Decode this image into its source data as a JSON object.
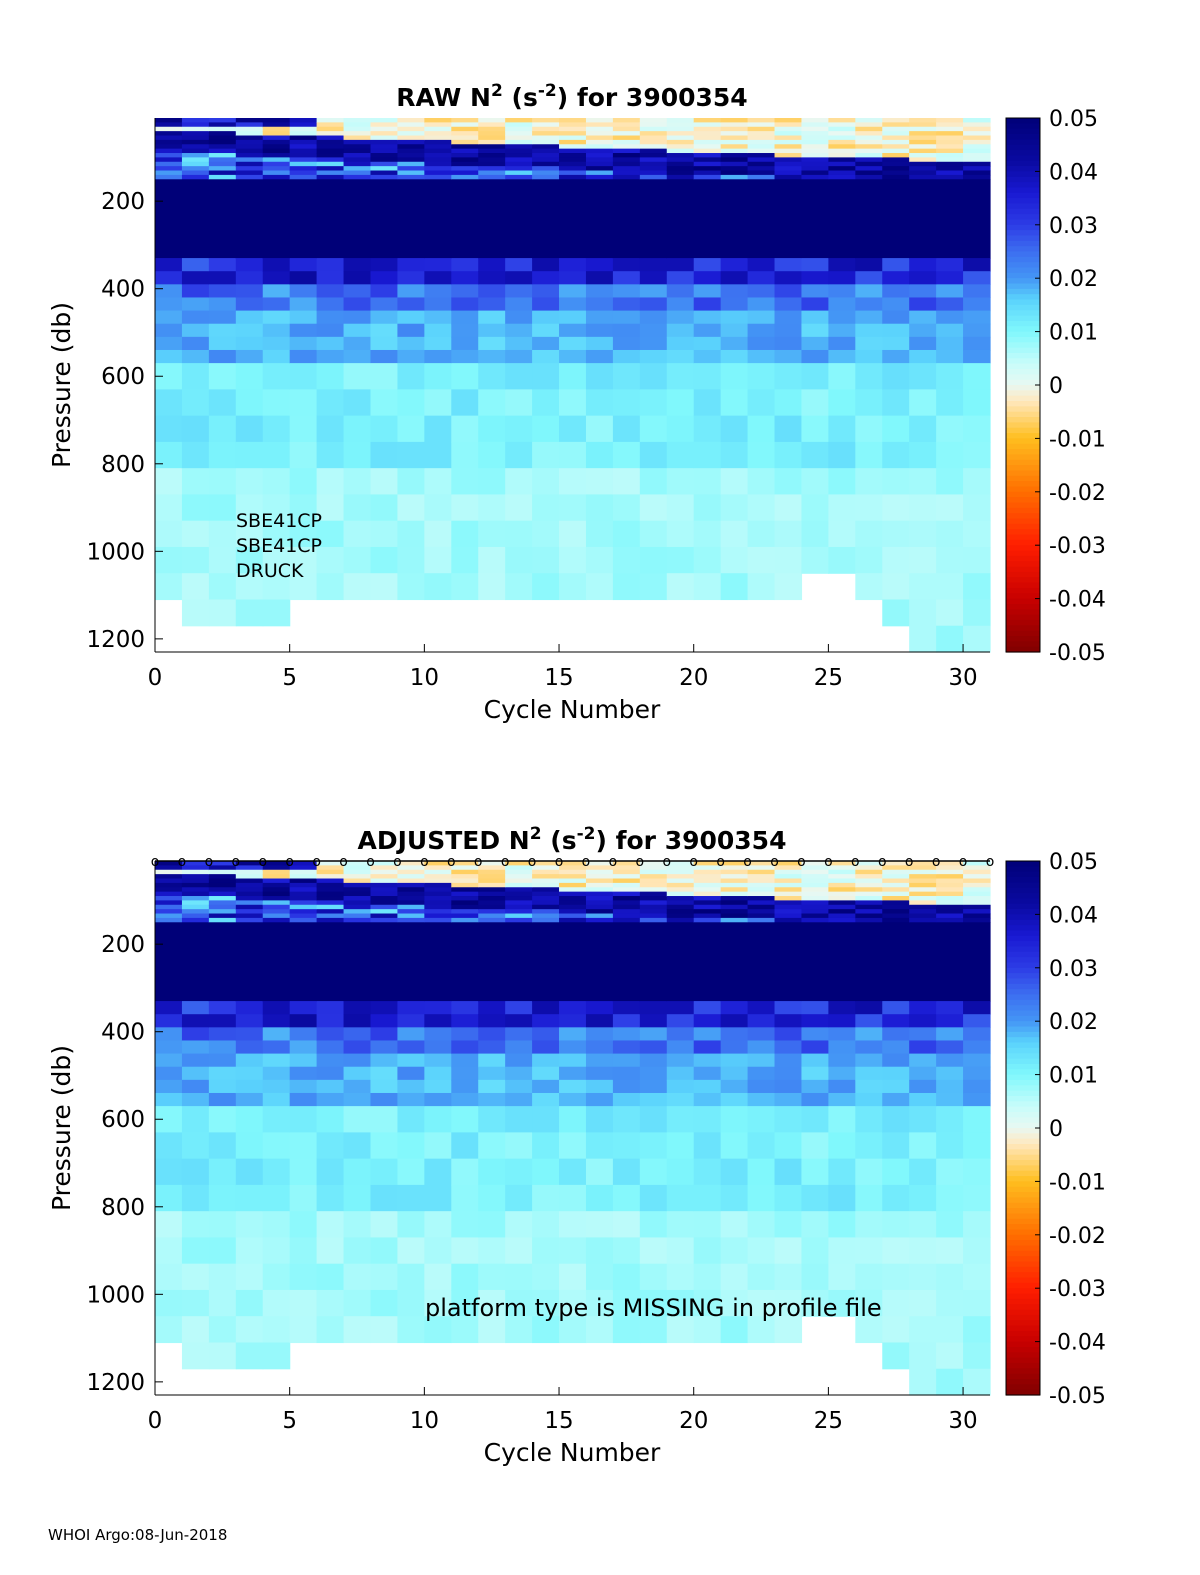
{
  "footer": "WHOI Argo:08-Jun-2018",
  "colorbar": {
    "ticks": [
      "0.05",
      "0.04",
      "0.03",
      "0.02",
      "0.01",
      "0",
      "-0.01",
      "-0.02",
      "-0.03",
      "-0.04",
      "-0.05"
    ],
    "range": [
      -0.05,
      0.05
    ]
  },
  "chart_data": [
    {
      "type": "heatmap",
      "title_main": "RAW N",
      "title_sup1": "2",
      "title_mid": " (s",
      "title_sup2": "-2",
      "title_end": ") for 3900354",
      "xlabel": "Cycle Number",
      "ylabel": "Pressure (db)",
      "xlim": [
        0,
        31
      ],
      "ylim": [
        1230,
        10
      ],
      "xticks": [
        "0",
        "5",
        "10",
        "15",
        "20",
        "25",
        "30"
      ],
      "yticks": [
        "200",
        "400",
        "600",
        "800",
        "1000",
        "1200"
      ],
      "annotation": [
        "SBE41CP",
        "SBE41CP",
        "DRUCK"
      ],
      "color_range": [
        -0.05,
        0.05
      ]
    },
    {
      "type": "heatmap",
      "title_main": "ADJUSTED N",
      "title_sup1": "2",
      "title_mid": " (s",
      "title_sup2": "-2",
      "title_end": ") for 3900354",
      "xlabel": "Cycle Number",
      "ylabel": "Pressure (db)",
      "xlim": [
        0,
        31
      ],
      "ylim": [
        1230,
        10
      ],
      "xticks": [
        "0",
        "5",
        "10",
        "15",
        "20",
        "25",
        "30"
      ],
      "yticks": [
        "200",
        "400",
        "600",
        "800",
        "1000",
        "1200"
      ],
      "annotation": [
        "platform type is MISSING in profile file"
      ],
      "marker_row_label": "o",
      "color_range": [
        -0.05,
        0.05
      ]
    }
  ]
}
